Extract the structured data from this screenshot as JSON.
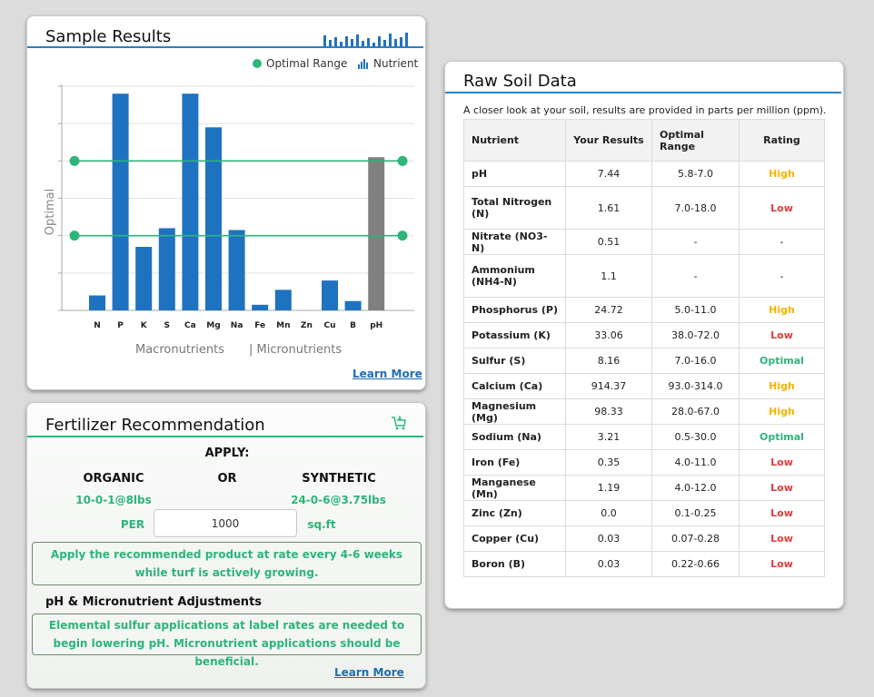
{
  "sample": {
    "title": "Sample Results",
    "legend_optimal": "Optimal Range",
    "legend_nutrient": "Nutrient",
    "macro_label": "Macronutrients",
    "micro_label": "| Micronutrients",
    "learn_more": "Learn More"
  },
  "colors": {
    "primary_blue": "#1f72c0",
    "optimal_green": "#2db57a",
    "ph_gray": "#808080",
    "high": "#f5b400",
    "low": "#e03a3a"
  },
  "chart_data": {
    "type": "bar",
    "title": "Sample Results",
    "ylabel": "Optimal",
    "xlabel": "",
    "categories": [
      "N",
      "P",
      "K",
      "S",
      "Ca",
      "Mg",
      "Na",
      "Fe",
      "Mn",
      "Zn",
      "Cu",
      "B",
      "pH"
    ],
    "values": [
      0.4,
      5.8,
      1.7,
      2.2,
      5.8,
      4.9,
      2.15,
      0.15,
      0.55,
      0,
      0.8,
      0.25,
      4.1
    ],
    "series_colors": [
      "#1f72c0",
      "#1f72c0",
      "#1f72c0",
      "#1f72c0",
      "#1f72c0",
      "#1f72c0",
      "#1f72c0",
      "#1f72c0",
      "#1f72c0",
      "#1f72c0",
      "#1f72c0",
      "#1f72c0",
      "#808080"
    ],
    "optimal_lines": [
      4.0,
      2.0
    ],
    "ylim": [
      0,
      6
    ],
    "grid": true,
    "legend": "top-right",
    "groups": [
      "Macronutrients",
      "| Micronutrients"
    ]
  },
  "fertilizer": {
    "title": "Fertilizer Recommendation",
    "apply_label": "APPLY:",
    "organic_label": "ORGANIC",
    "or_label": "OR",
    "synthetic_label": "SYNTHETIC",
    "organic_value": "10-0-1@8lbs",
    "synthetic_value": "24-0-6@3.75lbs",
    "per_label": "PER",
    "per_value": "1000",
    "unit_label": "sq.ft",
    "note": "Apply the recommended product at rate every 4-6 weeks while turf is actively growing.",
    "ph_heading": "pH & Micronutrient Adjustments",
    "ph_note": "Elemental sulfur applications at label rates are needed to begin lowering pH. Micronutrient applications should be beneficial.",
    "learn_more": "Learn More"
  },
  "raw": {
    "title": "Raw Soil Data",
    "description": "A closer look at your soil, results are provided in parts per million (ppm).",
    "headers": [
      "Nutrient",
      "Your Results",
      "Optimal Range",
      "Rating"
    ],
    "rows": [
      {
        "nutrient": "pH",
        "result": "7.44",
        "range": "5.8-7.0",
        "rating": "High"
      },
      {
        "nutrient": "Total Nitrogen (N)",
        "result": "1.61",
        "range": "7.0-18.0",
        "rating": "Low"
      },
      {
        "nutrient": "Nitrate (NO3-N)",
        "result": "0.51",
        "range": "-",
        "rating": "-"
      },
      {
        "nutrient": "Ammonium (NH4-N)",
        "result": "1.1",
        "range": "-",
        "rating": "-"
      },
      {
        "nutrient": "Phosphorus (P)",
        "result": "24.72",
        "range": "5.0-11.0",
        "rating": "High"
      },
      {
        "nutrient": "Potassium (K)",
        "result": "33.06",
        "range": "38.0-72.0",
        "rating": "Low"
      },
      {
        "nutrient": "Sulfur (S)",
        "result": "8.16",
        "range": "7.0-16.0",
        "rating": "Optimal"
      },
      {
        "nutrient": "Calcium (Ca)",
        "result": "914.37",
        "range": "93.0-314.0",
        "rating": "High"
      },
      {
        "nutrient": "Magnesium (Mg)",
        "result": "98.33",
        "range": "28.0-67.0",
        "rating": "High"
      },
      {
        "nutrient": "Sodium (Na)",
        "result": "3.21",
        "range": "0.5-30.0",
        "rating": "Optimal"
      },
      {
        "nutrient": "Iron (Fe)",
        "result": "0.35",
        "range": "4.0-11.0",
        "rating": "Low"
      },
      {
        "nutrient": "Manganese (Mn)",
        "result": "1.19",
        "range": "4.0-12.0",
        "rating": "Low"
      },
      {
        "nutrient": "Zinc (Zn)",
        "result": "0.0",
        "range": "0.1-0.25",
        "rating": "Low"
      },
      {
        "nutrient": "Copper (Cu)",
        "result": "0.03",
        "range": "0.07-0.28",
        "rating": "Low"
      },
      {
        "nutrient": "Boron (B)",
        "result": "0.03",
        "range": "0.22-0.66",
        "rating": "Low"
      }
    ]
  }
}
